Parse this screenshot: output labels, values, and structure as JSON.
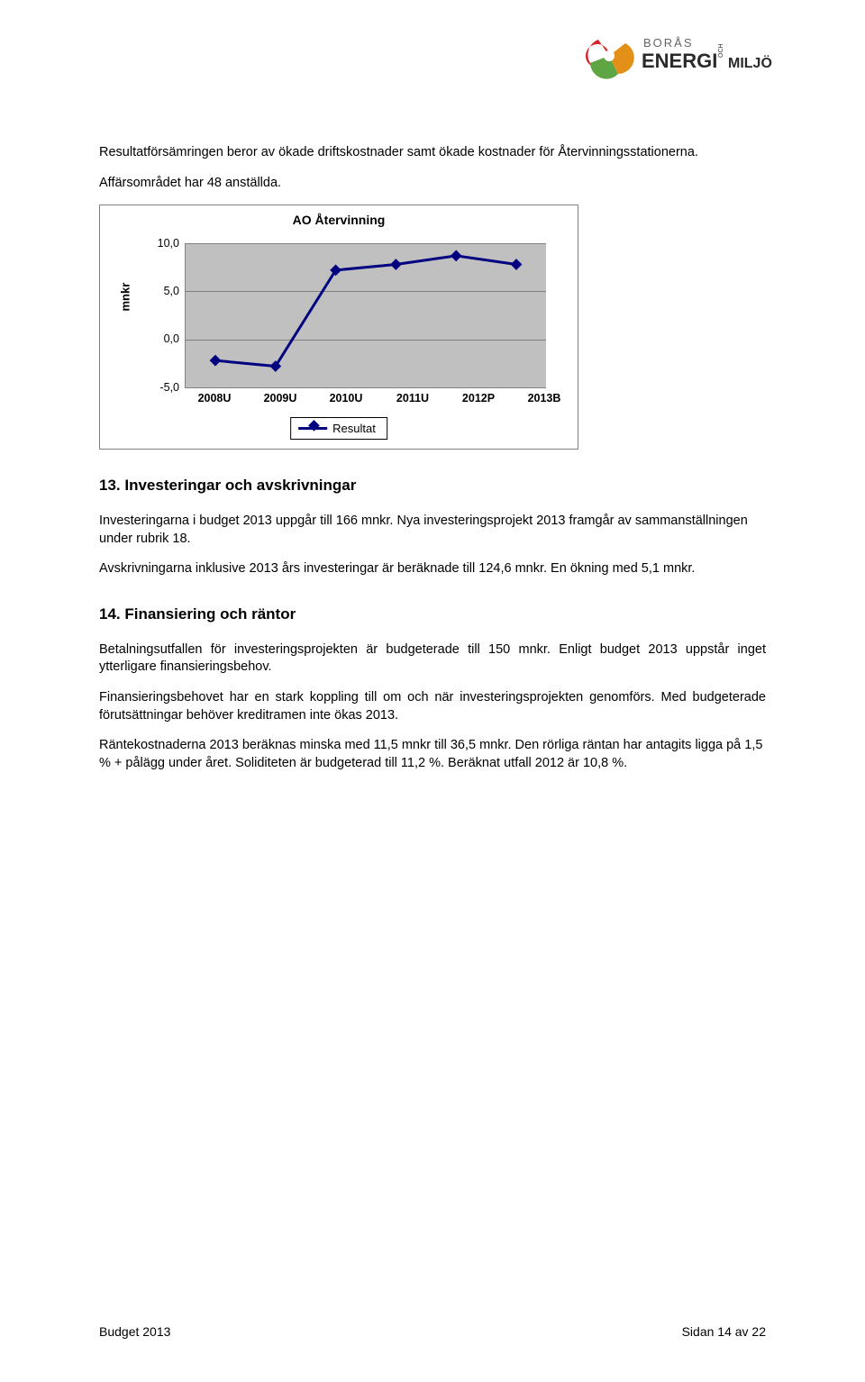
{
  "logo": {
    "brand_top": "BORÅS",
    "brand_mid": "ENERGI",
    "brand_suffix": "MILJÖ",
    "och": "OCH",
    "flower_colors": [
      "#d8232a",
      "#5fa544",
      "#e39019"
    ]
  },
  "intro": {
    "p1": "Resultatförsämringen beror av ökade driftskostnader samt ökade kostnader för Återvinningsstationerna.",
    "p2": "Affärsområdet har 48 anställda."
  },
  "chart": {
    "title": "AO Återvinning",
    "ylabel": "mnkr",
    "categories": [
      "2008U",
      "2009U",
      "2010U",
      "2011U",
      "2012P",
      "2013B"
    ],
    "values": [
      -2.2,
      -2.8,
      7.2,
      7.8,
      8.7,
      7.8
    ],
    "ymin": -5.0,
    "ymax": 10.0,
    "ytick_step": 5.0,
    "yticks": [
      "10,0",
      "5,0",
      "0,0",
      "-5,0"
    ],
    "line_color": "#000080",
    "marker_color": "#000080",
    "plot_bg": "#c0c0c0",
    "grid_color": "#808080",
    "legend_label": "Resultat"
  },
  "s13": {
    "heading": "13. Investeringar och avskrivningar",
    "p1": "Investeringarna i budget 2013 uppgår till 166 mnkr. Nya investeringsprojekt 2013 framgår av sammanställningen under rubrik 18.",
    "p2": "Avskrivningarna inklusive 2013 års investeringar är beräknade till 124,6 mnkr. En ökning med 5,1 mnkr."
  },
  "s14": {
    "heading": "14. Finansiering och räntor",
    "p1": "Betalningsutfallen för investeringsprojekten är budgeterade till 150 mnkr. Enligt budget 2013 uppstår inget ytterligare finansieringsbehov.",
    "p2": "Finansieringsbehovet har en stark koppling till om och när investeringsprojekten genomförs. Med budgeterade förutsättningar behöver kreditramen inte ökas 2013.",
    "p3": "Räntekostnaderna 2013 beräknas minska med 11,5 mnkr till 36,5 mnkr. Den rörliga räntan har antagits ligga på 1,5 % + pålägg under året. Soliditeten är budgeterad till 11,2 %. Beräknat utfall 2012 är 10,8 %."
  },
  "footer": {
    "left": "Budget 2013",
    "right": "Sidan 14 av 22"
  }
}
